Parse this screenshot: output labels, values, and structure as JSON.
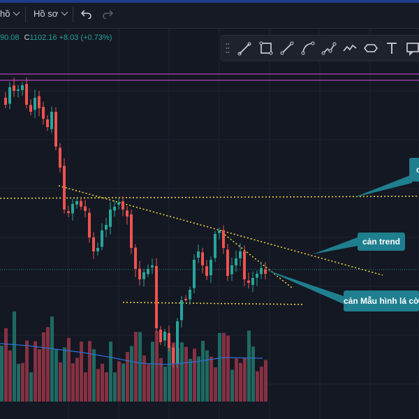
{
  "toolbar": {
    "profile_prev": "hồ",
    "profile_label": "Hồ sơ"
  },
  "legend": {
    "open_tail": "90.08",
    "close_label": "C",
    "close_value": "1102.16",
    "change": "+8.03 (+0.73%)"
  },
  "drawing_tools": [
    "drag-handle-icon",
    "brush-icon",
    "rectangle-icon",
    "trend-line-icon",
    "curve-icon",
    "path-icon",
    "polyline-icon",
    "pattern-icon",
    "ellipse-icon",
    "text-icon",
    "note-icon"
  ],
  "annotations": {
    "trend_label": "cản trend",
    "flag_label": "cản Mẫu hình lá cờ",
    "partial_label": "c"
  },
  "colors": {
    "background": "#141823",
    "up": "#26a69a",
    "down": "#ef5350",
    "callout": "#1f7f8f",
    "dotted_line": "#f0d43a",
    "resistance_band": "#b040c0",
    "volume_ma": "#2f6fd6"
  },
  "chart_data": {
    "type": "candlestick",
    "candles_approx": [
      {
        "o": 0.78,
        "c": 0.82
      },
      {
        "o": 0.82,
        "c": 0.86
      },
      {
        "o": 0.86,
        "c": 0.79
      }
    ],
    "levels": {
      "resistance_band": "purple",
      "horizontal_dotted": "yellow",
      "flag_support_dotted": "yellow",
      "trend_line_dotted": "yellow"
    }
  }
}
